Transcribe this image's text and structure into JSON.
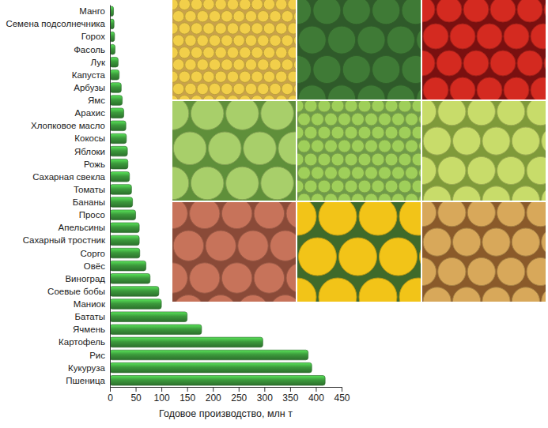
{
  "chart_data": {
    "type": "bar",
    "orientation": "horizontal",
    "categories": [
      "Манго",
      "Семена подсолнечника",
      "Горох",
      "Фасоль",
      "Лук",
      "Капуста",
      "Арбузы",
      "Ямс",
      "Арахис",
      "Хлопковое масло",
      "Кокосы",
      "Яблоки",
      "Рожь",
      "Сахарная свекла",
      "Томаты",
      "Бананы",
      "Просо",
      "Апельсины",
      "Сахарный тростник",
      "Сорго",
      "Овёс",
      "Виноград",
      "Соевые бобы",
      "Маниок",
      "Бататы",
      "Ячмень",
      "Картофель",
      "Рис",
      "Кукуруза",
      "Пшеница"
    ],
    "values": [
      7,
      8,
      9,
      10,
      16,
      18,
      22,
      24,
      27,
      31,
      32,
      34,
      35,
      38,
      42,
      44,
      50,
      57,
      57,
      58,
      70,
      78,
      95,
      100,
      150,
      178,
      297,
      385,
      392,
      418
    ],
    "color": "#3c9a3c",
    "xlim": [
      0,
      450
    ],
    "xticks": [
      0,
      50,
      100,
      150,
      200,
      250,
      300,
      350,
      400,
      450
    ],
    "x_label": "Годовое производство, млн т",
    "grid": false
  }
}
